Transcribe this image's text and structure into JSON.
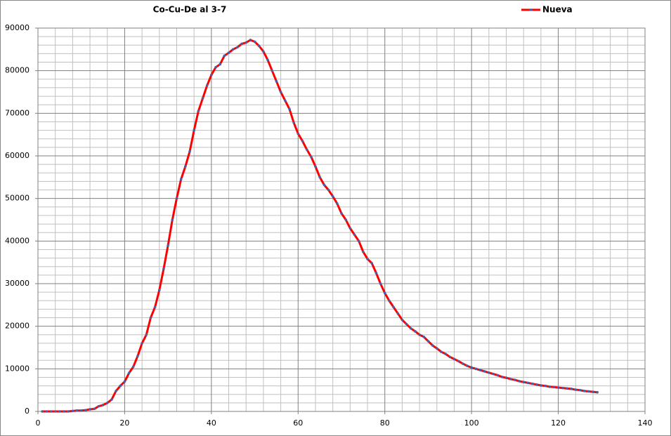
{
  "chart_data": {
    "type": "line",
    "title": "Co-Cu-De al 3-7",
    "x": [
      1,
      2,
      3,
      4,
      5,
      6,
      7,
      8,
      9,
      10,
      11,
      12,
      13,
      14,
      15,
      16,
      17,
      18,
      19,
      20,
      21,
      22,
      23,
      24,
      25,
      26,
      27,
      28,
      29,
      30,
      31,
      32,
      33,
      34,
      35,
      36,
      37,
      38,
      39,
      40,
      41,
      42,
      43,
      44,
      45,
      46,
      47,
      48,
      49,
      50,
      51,
      52,
      53,
      54,
      55,
      56,
      57,
      58,
      59,
      60,
      61,
      62,
      63,
      64,
      65,
      66,
      67,
      68,
      69,
      70,
      71,
      72,
      73,
      74,
      75,
      76,
      77,
      78,
      79,
      80,
      81,
      82,
      83,
      84,
      85,
      86,
      87,
      88,
      89,
      90,
      91,
      92,
      93,
      94,
      95,
      96,
      97,
      98,
      99,
      100,
      101,
      102,
      103,
      104,
      105,
      106,
      107,
      108,
      109,
      110,
      111,
      112,
      113,
      114,
      115,
      116,
      117,
      118,
      119,
      120,
      121,
      122,
      123,
      124,
      125,
      126,
      127,
      128,
      129
    ],
    "series": [
      {
        "name": "Nueva",
        "color": "#ff0000",
        "marker_color": "#4a5fa8",
        "values": [
          0,
          0,
          0,
          0,
          0,
          0,
          0,
          100,
          200,
          200,
          300,
          500,
          600,
          1200,
          1500,
          2000,
          2800,
          4800,
          6000,
          7000,
          9000,
          10500,
          13000,
          16000,
          18000,
          22000,
          24500,
          28500,
          33500,
          39000,
          45000,
          50000,
          54500,
          57500,
          61000,
          66000,
          70500,
          73500,
          76500,
          79000,
          80800,
          81500,
          83500,
          84200,
          85000,
          85500,
          86300,
          86600,
          87200,
          86800,
          85800,
          84500,
          82500,
          80000,
          77500,
          75000,
          73000,
          71000,
          67800,
          65200,
          63500,
          61500,
          59800,
          57500,
          55000,
          53200,
          52000,
          50500,
          48800,
          46500,
          45000,
          43000,
          41500,
          40000,
          37500,
          35800,
          34800,
          32500,
          30000,
          27800,
          26000,
          24500,
          23000,
          21500,
          20500,
          19500,
          18800,
          18000,
          17500,
          16500,
          15500,
          14800,
          14000,
          13500,
          12800,
          12300,
          11800,
          11200,
          10700,
          10300,
          10000,
          9700,
          9400,
          9100,
          8800,
          8500,
          8100,
          7900,
          7600,
          7400,
          7100,
          6900,
          6700,
          6500,
          6300,
          6100,
          6000,
          5800,
          5700,
          5600,
          5500,
          5400,
          5300,
          5100,
          5000,
          4800,
          4700,
          4600,
          4500
        ]
      }
    ],
    "xlim": [
      0,
      140
    ],
    "xticks": [
      0,
      20,
      40,
      60,
      80,
      100,
      120,
      140
    ],
    "ylim": [
      0,
      90000
    ],
    "yticks": [
      0,
      10000,
      20000,
      30000,
      40000,
      50000,
      60000,
      70000,
      80000,
      90000
    ],
    "minor_xgrid": [
      4,
      8,
      12,
      16,
      24,
      28,
      32,
      36,
      44,
      48,
      52,
      56,
      64,
      68,
      72,
      76,
      84,
      88,
      92,
      96,
      104,
      108,
      112,
      116,
      124,
      128,
      132,
      136
    ],
    "minor_ygrid": [
      2000,
      4000,
      6000,
      8000,
      12000,
      14000,
      16000,
      18000,
      22000,
      24000,
      26000,
      28000,
      32000,
      34000,
      36000,
      38000,
      42000,
      44000,
      46000,
      48000,
      52000,
      54000,
      56000,
      58000,
      62000,
      64000,
      66000,
      68000,
      72000,
      74000,
      76000,
      78000,
      82000,
      84000,
      86000,
      88000
    ],
    "grid": true,
    "legend": "top-right"
  }
}
